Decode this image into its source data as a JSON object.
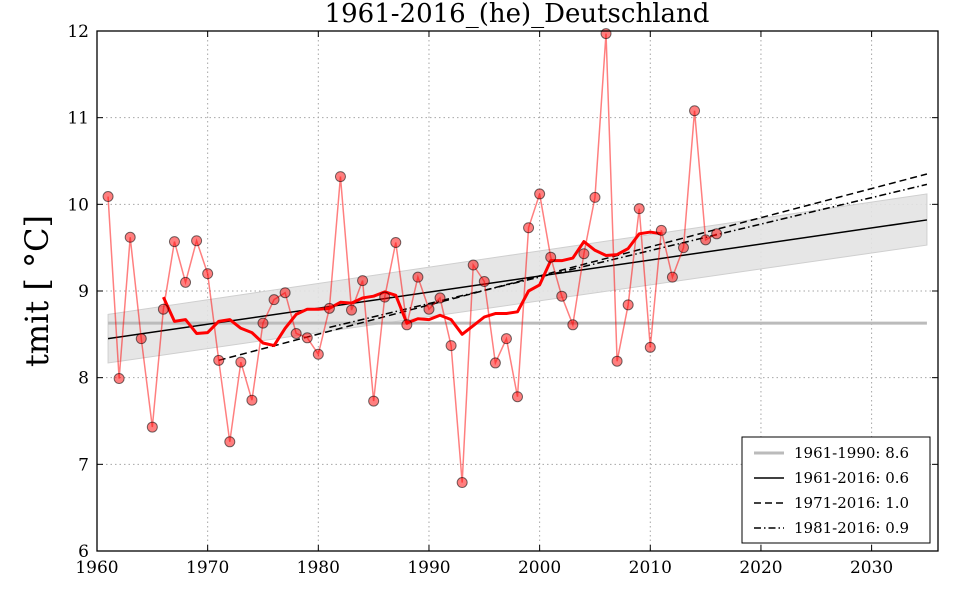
{
  "chart_data": {
    "type": "line",
    "title": "1961-2016_(he)_Deutschland",
    "ylabel": "tmit [ °C]",
    "xlabel": "",
    "xlim": [
      1960,
      2036
    ],
    "ylim": [
      6,
      12
    ],
    "xticks": [
      1960,
      1970,
      1980,
      1990,
      2000,
      2010,
      2020,
      2030
    ],
    "yticks": [
      6,
      7,
      8,
      9,
      10,
      11,
      12
    ],
    "grid": true,
    "legend_position": "bottom-right",
    "colors": {
      "observations": "#ff0000",
      "smooth": "#ff0000",
      "baseline": "#bbbbbb",
      "trend": "#000000",
      "band": "#e3e3e3"
    },
    "observations": {
      "x": [
        1961,
        1962,
        1963,
        1964,
        1965,
        1966,
        1967,
        1968,
        1969,
        1970,
        1971,
        1972,
        1973,
        1974,
        1975,
        1976,
        1977,
        1978,
        1979,
        1980,
        1981,
        1982,
        1983,
        1984,
        1985,
        1986,
        1987,
        1988,
        1989,
        1990,
        1991,
        1992,
        1993,
        1994,
        1995,
        1996,
        1997,
        1998,
        1999,
        2000,
        2001,
        2002,
        2003,
        2004,
        2005,
        2006,
        2007,
        2008,
        2009,
        2010,
        2011,
        2012,
        2013,
        2014,
        2015,
        2016
      ],
      "y": [
        10.09,
        7.99,
        9.62,
        8.45,
        7.43,
        8.79,
        9.57,
        9.1,
        9.58,
        9.2,
        8.2,
        7.26,
        8.18,
        7.74,
        8.63,
        8.9,
        8.98,
        8.51,
        8.46,
        8.27,
        8.8,
        10.32,
        8.78,
        9.12,
        7.73,
        8.93,
        9.56,
        8.61,
        9.16,
        8.79,
        8.92,
        8.37,
        6.79,
        9.3,
        9.11,
        8.17,
        8.45,
        7.78,
        9.73,
        10.12,
        9.39,
        8.94,
        8.61,
        9.43,
        10.08,
        11.97,
        8.19,
        8.84,
        9.95,
        8.35,
        9.7,
        9.16,
        9.5,
        11.08,
        9.59,
        9.66
      ]
    },
    "smooth": {
      "x": [
        1966,
        1967,
        1968,
        1969,
        1970,
        1971,
        1972,
        1973,
        1974,
        1975,
        1976,
        1977,
        1978,
        1979,
        1980,
        1981,
        1982,
        1983,
        1984,
        1985,
        1986,
        1987,
        1988,
        1989,
        1990,
        1991,
        1992,
        1993,
        1994,
        1995,
        1996,
        1997,
        1998,
        1999,
        2000,
        2001,
        2002,
        2003,
        2004,
        2005,
        2006,
        2007,
        2008,
        2009,
        2010,
        2011
      ],
      "y": [
        8.93,
        8.65,
        8.67,
        8.51,
        8.52,
        8.65,
        8.67,
        8.57,
        8.52,
        8.4,
        8.37,
        8.57,
        8.73,
        8.79,
        8.79,
        8.8,
        8.87,
        8.86,
        8.92,
        8.94,
        8.99,
        8.95,
        8.63,
        8.68,
        8.67,
        8.72,
        8.67,
        8.5,
        8.6,
        8.7,
        8.74,
        8.74,
        8.76,
        9.0,
        9.07,
        9.35,
        9.35,
        9.38,
        9.57,
        9.47,
        9.41,
        9.42,
        9.49,
        9.66,
        9.68,
        9.66
      ]
    },
    "baseline": {
      "x": [
        1961,
        2035
      ],
      "y": [
        8.63,
        8.63
      ]
    },
    "trends": [
      {
        "name": "1961-2016",
        "style": "solid",
        "x": [
          1961,
          2035
        ],
        "y": [
          8.45,
          9.82
        ]
      },
      {
        "name": "1971-2016",
        "style": "dashed",
        "x": [
          1971,
          2035
        ],
        "y": [
          8.2,
          10.35
        ]
      },
      {
        "name": "1981-2016",
        "style": "dashdot",
        "x": [
          1981,
          2035
        ],
        "y": [
          8.58,
          10.23
        ]
      }
    ],
    "confidence_band": {
      "x": [
        1961,
        2035
      ],
      "upper": [
        8.73,
        10.12
      ],
      "lower": [
        8.17,
        9.53
      ]
    },
    "legend": [
      {
        "label": "1961-1990: 8.6",
        "style": "baseline"
      },
      {
        "label": "1961-2016: 0.6",
        "style": "solid"
      },
      {
        "label": "1971-2016: 1.0",
        "style": "dashed"
      },
      {
        "label": "1981-2016: 0.9",
        "style": "dashdot"
      }
    ]
  }
}
